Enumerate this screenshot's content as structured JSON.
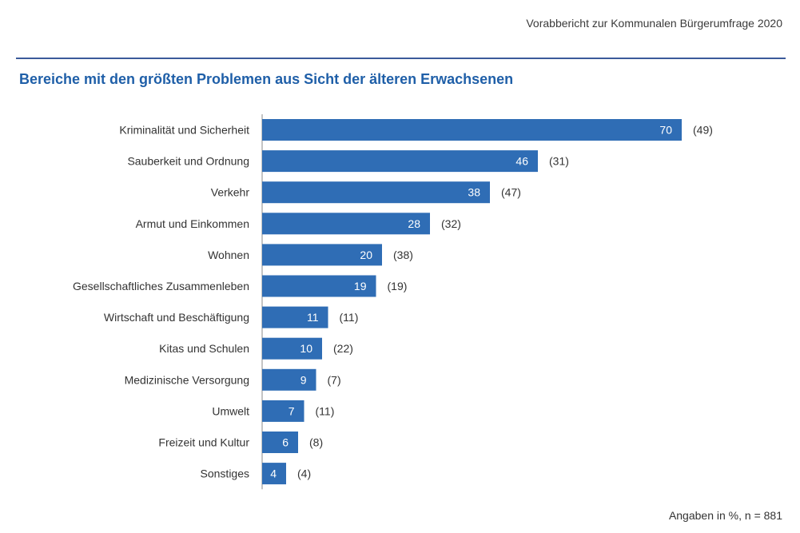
{
  "header": {
    "report_title": "Vorabbericht zur Kommunalen Bürgerumfrage 2020"
  },
  "footnote": "Angaben in %, n = 881",
  "colors": {
    "bar": "#2f6db5",
    "title": "#1f5fa8",
    "rule": "#3b5a9a",
    "axis": "#888888"
  },
  "chart_data": {
    "type": "bar",
    "orientation": "horizontal",
    "title": "Bereiche mit den größten Problemen aus Sicht der älteren Erwachsenen",
    "categories": [
      "Kriminalität und Sicherheit",
      "Sauberkeit und Ordnung",
      "Verkehr",
      "Armut und Einkommen",
      "Wohnen",
      "Gesellschaftliches Zusammenleben",
      "Wirtschaft und Beschäftigung",
      "Kitas und Schulen",
      "Medizinische Versorgung",
      "Umwelt",
      "Freizeit und Kultur",
      "Sonstiges"
    ],
    "values": [
      70,
      46,
      38,
      28,
      20,
      19,
      11,
      10,
      9,
      7,
      6,
      4
    ],
    "comparison_labels": [
      "(49)",
      "(31)",
      "(47)",
      "(32)",
      "(38)",
      "(19)",
      "(11)",
      "(22)",
      "(7)",
      "(11)",
      "(8)",
      "(4)"
    ],
    "unit": "%",
    "xlim": [
      0,
      70
    ],
    "grid": false,
    "legend": "none"
  }
}
